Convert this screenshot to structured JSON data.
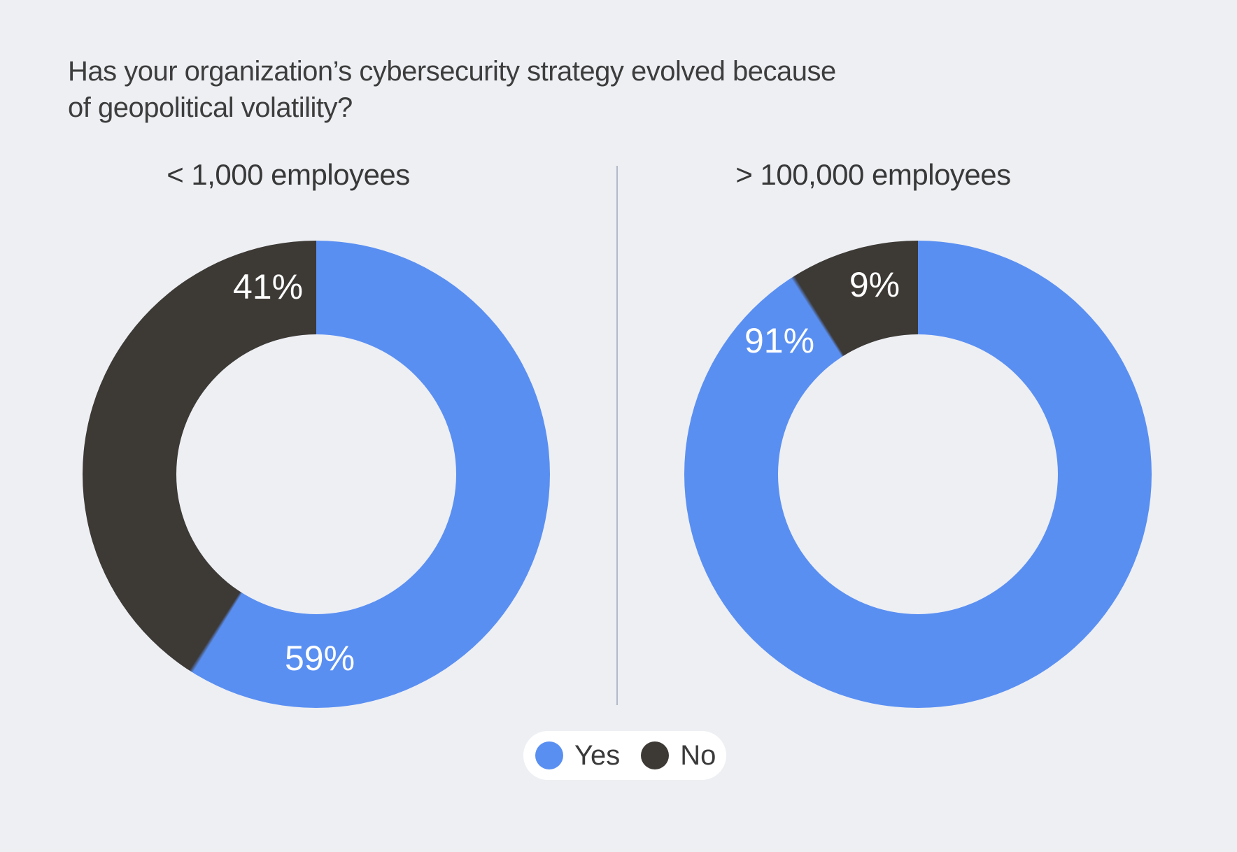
{
  "page": {
    "background_color": "#edeff3",
    "title": "Has your organization’s cybersecurity strategy evolved because\nof geopolitical volatility?",
    "text_color": "#3d3d3d"
  },
  "colors": {
    "yes_blue": "#5a8ff2",
    "no_charcoal": "#3d3935",
    "divider": "#b3bac7",
    "label_white": "#ffffff",
    "legend_pill_background": "#ffffff"
  },
  "legend": {
    "items": [
      {
        "label": "Yes",
        "color": "#5a8ff2"
      },
      {
        "label": "No",
        "color": "#3d3935"
      }
    ],
    "position": "bottom-center"
  },
  "chart_data": [
    {
      "type": "pie",
      "subtype": "donut",
      "title": "< 1,000 employees",
      "labels": [
        "Yes",
        "No"
      ],
      "values": [
        59,
        41
      ],
      "value_labels": [
        "59%",
        "41%"
      ],
      "colors": [
        "#5a8ff2",
        "#3d3935"
      ],
      "start_angle_deg": 0,
      "direction": "clockwise"
    },
    {
      "type": "pie",
      "subtype": "donut",
      "title": "> 100,000 employees",
      "labels": [
        "Yes",
        "No"
      ],
      "values": [
        91,
        9
      ],
      "value_labels": [
        "91%",
        "9%"
      ],
      "colors": [
        "#5a8ff2",
        "#3d3935"
      ],
      "start_angle_deg": 0,
      "direction": "clockwise"
    }
  ]
}
